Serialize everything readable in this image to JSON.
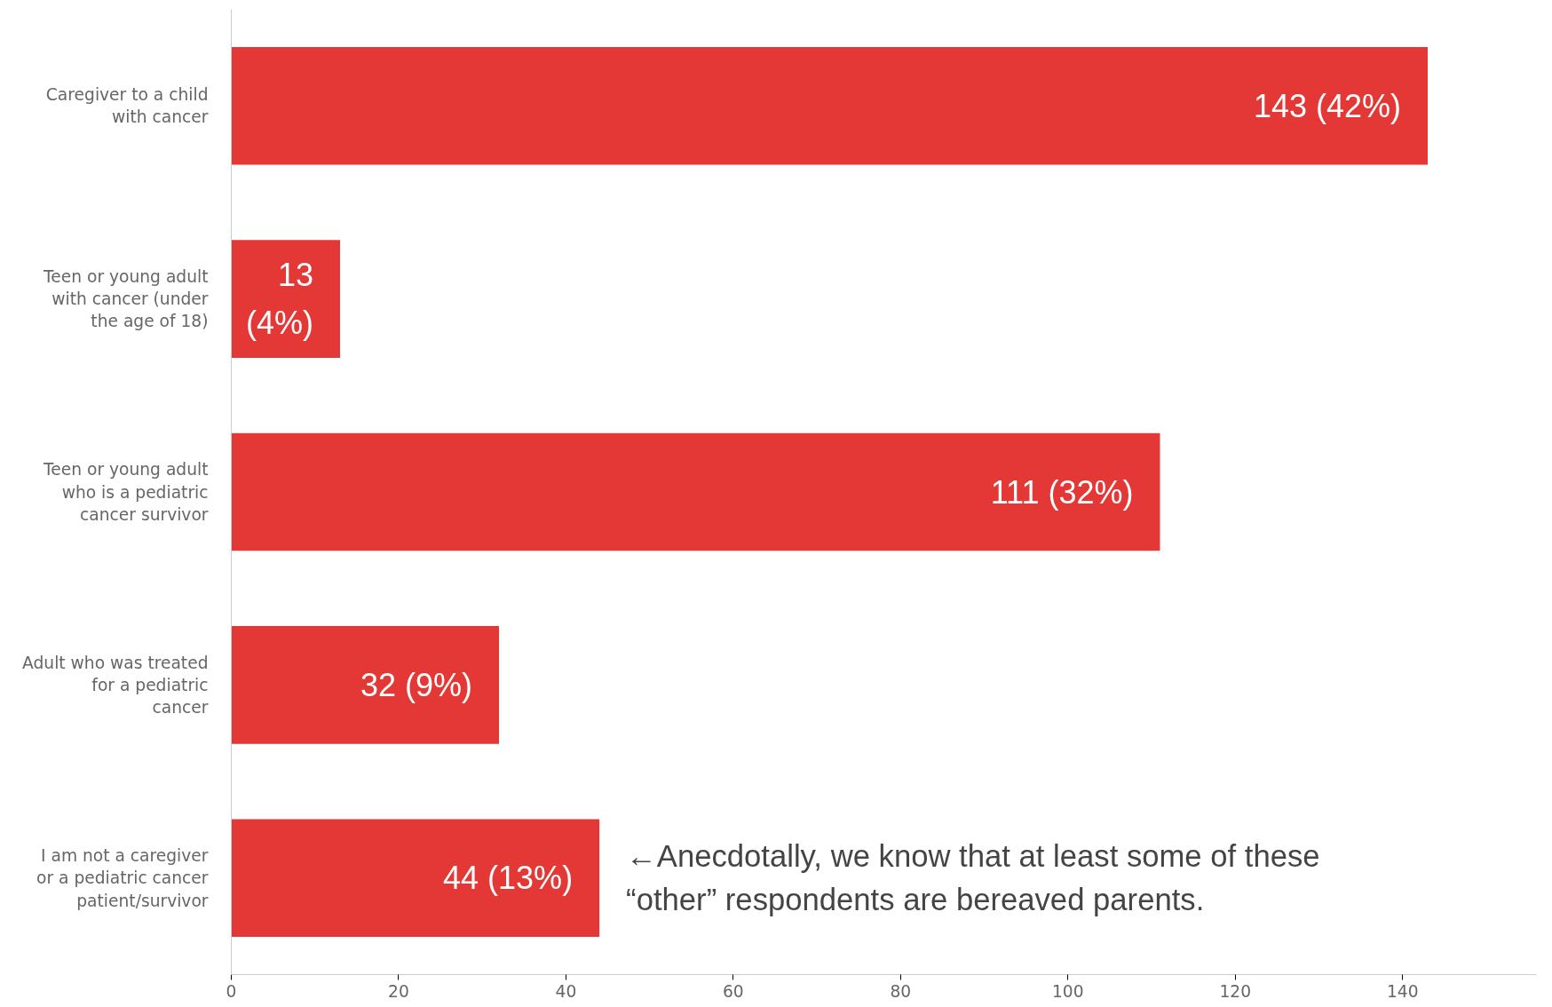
{
  "chart_data": {
    "type": "bar",
    "orientation": "horizontal",
    "categories": [
      "Caregiver to a child\nwith cancer",
      "Teen or young adult\nwith cancer (under\nthe age of 18)",
      "Teen or young adult\nwho is a pediatric\ncancer survivor",
      "Adult who was treated\nfor a pediatric\ncancer",
      "I am not a caregiver\nor a pediatric cancer\npatient/survivor"
    ],
    "values": [
      143,
      13,
      111,
      32,
      44
    ],
    "value_labels": [
      "143 (42%)",
      "13\n(4%)",
      "111 (32%)",
      "32 (9%)",
      "44 (13%)"
    ],
    "color": "#e33835",
    "xlim": [
      0,
      156
    ],
    "xticks": [
      0,
      20,
      40,
      60,
      80,
      100,
      120,
      140
    ],
    "grid": false,
    "annotations": [
      {
        "text": "←Anecdotally, we know that at least some of these\n“other” respondents are bereaved parents.",
        "x": 44,
        "y": "I am not a caregiver\nor a pediatric cancer\npatient/survivor"
      }
    ]
  }
}
